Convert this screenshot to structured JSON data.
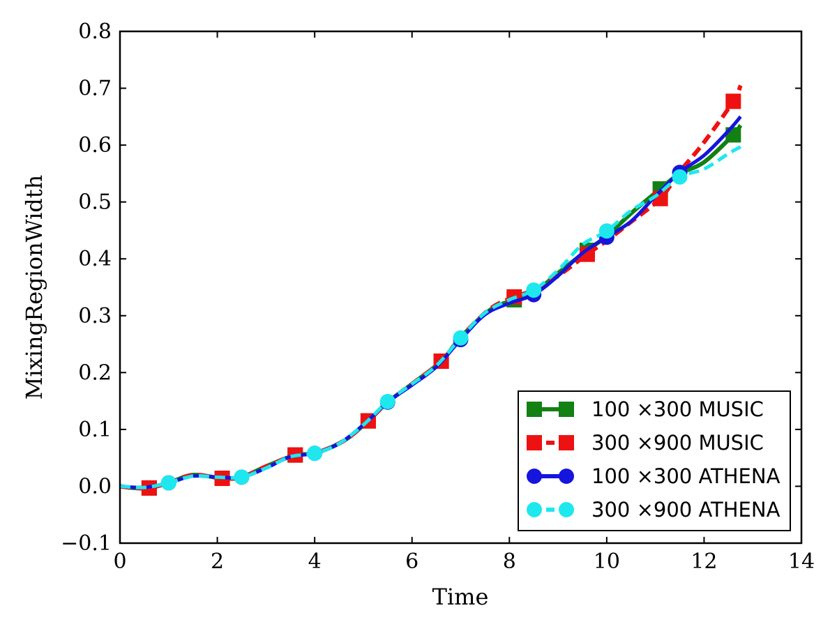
{
  "chart_data": {
    "type": "line",
    "title": "",
    "xlabel": "Time",
    "ylabel": "MixingRegionWidth",
    "xlim": [
      0,
      14
    ],
    "ylim": [
      -0.1,
      0.8
    ],
    "xticks": [
      "0",
      "2",
      "4",
      "6",
      "8",
      "10",
      "12",
      "14"
    ],
    "yticks": [
      "−0.1",
      "0.0",
      "0.1",
      "0.2",
      "0.3",
      "0.4",
      "0.5",
      "0.6",
      "0.7",
      "0.8"
    ],
    "legend_position": "lower-right",
    "series": [
      {
        "name": "100 ×300 MUSIC",
        "color": "#138013",
        "linestyle": "solid",
        "marker": "square",
        "x": [
          0,
          0.3,
          0.6,
          1.0,
          1.5,
          2.1,
          2.5,
          3.0,
          3.6,
          4.0,
          4.6,
          5.1,
          5.5,
          6.0,
          6.6,
          7.0,
          7.6,
          8.1,
          8.5,
          9.0,
          9.6,
          10.0,
          10.5,
          11.1,
          11.5,
          12.0,
          12.6,
          12.75
        ],
        "y": [
          0.0,
          -0.003,
          -0.003,
          0.006,
          0.02,
          0.014,
          0.016,
          0.035,
          0.055,
          0.058,
          0.08,
          0.115,
          0.148,
          0.18,
          0.22,
          0.262,
          0.31,
          0.328,
          0.34,
          0.375,
          0.415,
          0.44,
          0.48,
          0.523,
          0.55,
          0.57,
          0.618,
          0.635
        ],
        "marker_x": [
          0.6,
          2.1,
          3.6,
          5.1,
          6.6,
          8.1,
          9.6,
          11.1,
          12.6
        ]
      },
      {
        "name": "300 ×900 MUSIC",
        "color": "#ee1111",
        "linestyle": "dashed",
        "marker": "square",
        "x": [
          0,
          0.3,
          0.6,
          1.0,
          1.5,
          2.1,
          2.5,
          3.0,
          3.6,
          4.0,
          4.6,
          5.1,
          5.5,
          6.0,
          6.6,
          7.0,
          7.6,
          8.1,
          8.5,
          9.0,
          9.6,
          10.0,
          10.5,
          11.1,
          11.5,
          12.0,
          12.6,
          12.75
        ],
        "y": [
          0.0,
          -0.003,
          -0.003,
          0.006,
          0.02,
          0.014,
          0.016,
          0.035,
          0.055,
          0.058,
          0.08,
          0.115,
          0.148,
          0.18,
          0.22,
          0.262,
          0.312,
          0.333,
          0.345,
          0.37,
          0.408,
          0.432,
          0.465,
          0.506,
          0.553,
          0.605,
          0.677,
          0.705
        ],
        "marker_x": [
          0.6,
          2.1,
          3.6,
          5.1,
          6.6,
          8.1,
          9.6,
          11.1,
          12.6
        ]
      },
      {
        "name": "100 ×300 ATHENA",
        "color": "#1515dd",
        "linestyle": "solid",
        "marker": "circle",
        "x": [
          0,
          0.5,
          1.0,
          1.5,
          2.0,
          2.5,
          3.0,
          3.5,
          4.0,
          4.5,
          5.0,
          5.5,
          6.0,
          6.5,
          7.0,
          7.5,
          8.0,
          8.5,
          9.0,
          9.5,
          10.0,
          10.5,
          11.0,
          11.5,
          12.0,
          12.5,
          12.75
        ],
        "y": [
          0.0,
          -0.002,
          0.006,
          0.018,
          0.016,
          0.016,
          0.032,
          0.052,
          0.058,
          0.075,
          0.108,
          0.148,
          0.178,
          0.21,
          0.258,
          0.302,
          0.322,
          0.337,
          0.37,
          0.41,
          0.438,
          0.466,
          0.51,
          0.552,
          0.582,
          0.625,
          0.65
        ],
        "marker_x": [
          1.0,
          2.5,
          4.0,
          5.5,
          7.0,
          8.5,
          10.0,
          11.5
        ]
      },
      {
        "name": "300 ×900 ATHENA",
        "color": "#1ee8ee",
        "linestyle": "dashed",
        "marker": "circle",
        "x": [
          0,
          0.5,
          1.0,
          1.5,
          2.0,
          2.5,
          3.0,
          3.5,
          4.0,
          4.5,
          5.0,
          5.5,
          6.0,
          6.5,
          7.0,
          7.5,
          8.0,
          8.5,
          9.0,
          9.5,
          10.0,
          10.5,
          11.0,
          11.5,
          12.0,
          12.5,
          12.75
        ],
        "y": [
          0.0,
          -0.002,
          0.006,
          0.018,
          0.016,
          0.016,
          0.032,
          0.052,
          0.058,
          0.075,
          0.108,
          0.149,
          0.18,
          0.212,
          0.261,
          0.305,
          0.328,
          0.345,
          0.38,
          0.425,
          0.449,
          0.485,
          0.51,
          0.544,
          0.558,
          0.585,
          0.597
        ],
        "marker_x": [
          1.0,
          2.5,
          4.0,
          5.5,
          7.0,
          8.5,
          10.0,
          11.5
        ]
      }
    ]
  }
}
